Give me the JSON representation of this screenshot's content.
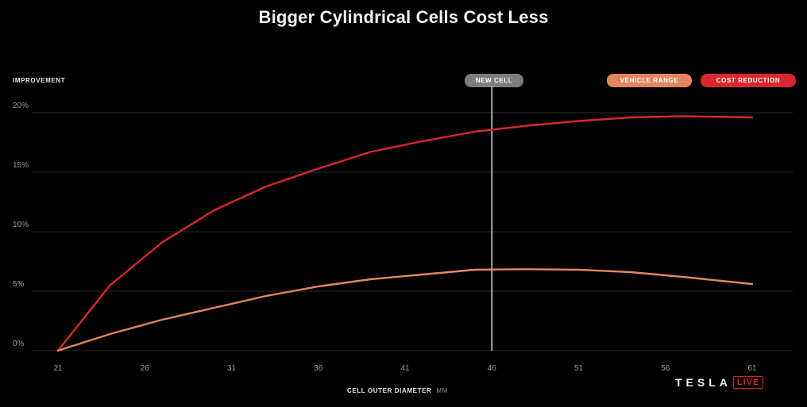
{
  "chart_data": {
    "type": "line",
    "title": "Bigger Cylindrical Cells Cost Less",
    "ylabel": "IMPROVEMENT",
    "xlabel": "CELL OUTER DIAMETER",
    "xlabel_unit": "MM",
    "xlim": [
      21,
      61
    ],
    "ylim": [
      0,
      20
    ],
    "xticks": [
      21,
      26,
      31,
      36,
      41,
      46,
      51,
      56,
      61
    ],
    "yticks": [
      0,
      5,
      10,
      15,
      20
    ],
    "ytick_labels": [
      "0%",
      "5%",
      "10%",
      "15%",
      "20%"
    ],
    "grid": true,
    "legend_position": "top-right",
    "annotation": {
      "label": "NEW CELL",
      "x": 46
    },
    "series": [
      {
        "name": "COST REDUCTION",
        "color": "#d8272f",
        "x": [
          21,
          24,
          27,
          30,
          33,
          36,
          39,
          42,
          45,
          48,
          51,
          54,
          57,
          61
        ],
        "y": [
          0,
          5.5,
          9.1,
          11.8,
          13.8,
          15.3,
          16.7,
          17.6,
          18.4,
          18.9,
          19.3,
          19.6,
          19.7,
          19.6
        ]
      },
      {
        "name": "VEHICLE RANGE",
        "color": "#e0875d",
        "x": [
          21,
          24,
          27,
          30,
          33,
          36,
          39,
          42,
          45,
          48,
          51,
          54,
          57,
          61
        ],
        "y": [
          0,
          1.4,
          2.6,
          3.6,
          4.6,
          5.4,
          6.0,
          6.4,
          6.8,
          6.85,
          6.8,
          6.6,
          6.2,
          5.6
        ]
      }
    ]
  },
  "branding": {
    "word": "TESLA",
    "badge": "LIVE"
  }
}
